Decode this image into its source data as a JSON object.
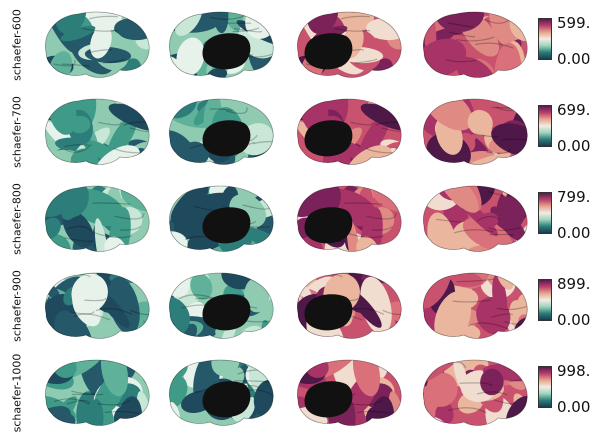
{
  "figure": {
    "description_free": true,
    "rows": [
      {
        "label": "schaefer-600",
        "max": "599.",
        "min": "0.00"
      },
      {
        "label": "schaefer-700",
        "max": "699.",
        "min": "0.00"
      },
      {
        "label": "schaefer-800",
        "max": "799.",
        "min": "0.00"
      },
      {
        "label": "schaefer-900",
        "max": "899.",
        "min": "0.00"
      },
      {
        "label": "schaefer-1000",
        "max": "998.",
        "min": "0.00"
      }
    ],
    "views": [
      "left-lateral",
      "left-medial",
      "right-medial",
      "right-lateral"
    ],
    "colormap": [
      "#1a3a4f",
      "#2a7f7a",
      "#9fd3bc",
      "#f0ede4",
      "#e8a58c",
      "#b8406b",
      "#5a1a4f"
    ]
  }
}
